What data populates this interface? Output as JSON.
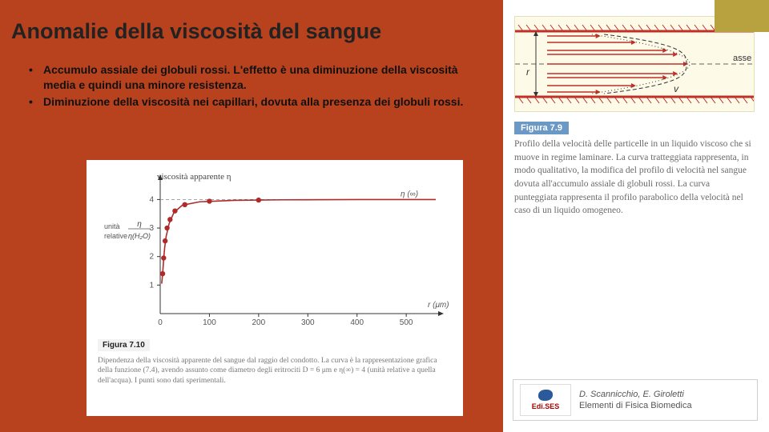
{
  "slide": {
    "bg_orange": "#b8421e",
    "accent_olive": "#b7a23f",
    "title": "Anomalie della viscosità del sangue",
    "bullets": [
      "Accumulo assiale dei globuli rossi. L'effetto è una diminuzione della viscosità media e quindi una minore resistenza.",
      "Diminuzione della viscosità nei capillari, dovuta alla presenza dei globuli rossi."
    ]
  },
  "figure79": {
    "label": "Figura 7.9",
    "caption": "Profilo della velocità delle particelle in un liquido viscoso che si muove in regime laminare. La curva tratteggiata rappresenta, in modo qualitativo, la modifica del profilo di velocità nel sangue dovuta all'accumulo assiale di globuli rossi. La curva punteggiata rappresenta il profilo parabolico della velocità nel caso di un liquido omogeneo.",
    "axis_label": "asse",
    "r_label": "r",
    "v_label": "v",
    "bg_color": "#fdfae8",
    "wall_color": "#c03028",
    "arrow_color": "#c03028",
    "curve_width": 1.4
  },
  "figure710": {
    "label": "Figura 7.10",
    "caption": "Dipendenza della viscosità apparente del sangue dal raggio del condotto. La curva è la rappresentazione grafica della funzione (7.4), avendo assunto come diametro degli eritrociti D = 6 μm e η(∞) = 4 (unità relative a quella dell'acqua). I punti sono dati sperimentali.",
    "y_title": "viscosità apparente η",
    "y_unit_top": "unità",
    "y_unit_bot": "relative",
    "y_frac_top": "η",
    "y_frac_bot": "η(H₂O)",
    "x_label": "r (μm)",
    "asymptote_label": "η (∞)",
    "x_ticks": [
      0,
      100,
      200,
      300,
      400,
      500
    ],
    "y_ticks": [
      0,
      1,
      2,
      3,
      4
    ],
    "xlim": [
      0,
      560
    ],
    "ylim": [
      0,
      4.6
    ],
    "asymptote_y": 4,
    "curve_points": [
      [
        3,
        1.05
      ],
      [
        5,
        1.4
      ],
      [
        7,
        1.9
      ],
      [
        9,
        2.3
      ],
      [
        12,
        2.7
      ],
      [
        18,
        3.15
      ],
      [
        28,
        3.55
      ],
      [
        45,
        3.8
      ],
      [
        80,
        3.92
      ],
      [
        150,
        3.97
      ],
      [
        250,
        3.99
      ],
      [
        400,
        4.0
      ],
      [
        560,
        4.0
      ]
    ],
    "data_points": [
      [
        5,
        1.4
      ],
      [
        7,
        1.95
      ],
      [
        10,
        2.55
      ],
      [
        14,
        3.0
      ],
      [
        20,
        3.3
      ],
      [
        30,
        3.6
      ],
      [
        50,
        3.82
      ],
      [
        100,
        3.94
      ],
      [
        200,
        3.98
      ]
    ],
    "axis_color": "#333333",
    "curve_color": "#b02a2a",
    "point_color": "#b02a2a",
    "point_radius": 3.2,
    "curve_width": 1.6,
    "font_size_axis": 10,
    "font_size_title": 11
  },
  "bookref": {
    "authors": "D. Scannicchio, E. Giroletti",
    "title": "Elementi di Fisica Biomedica",
    "publisher": "Edi.SES"
  }
}
